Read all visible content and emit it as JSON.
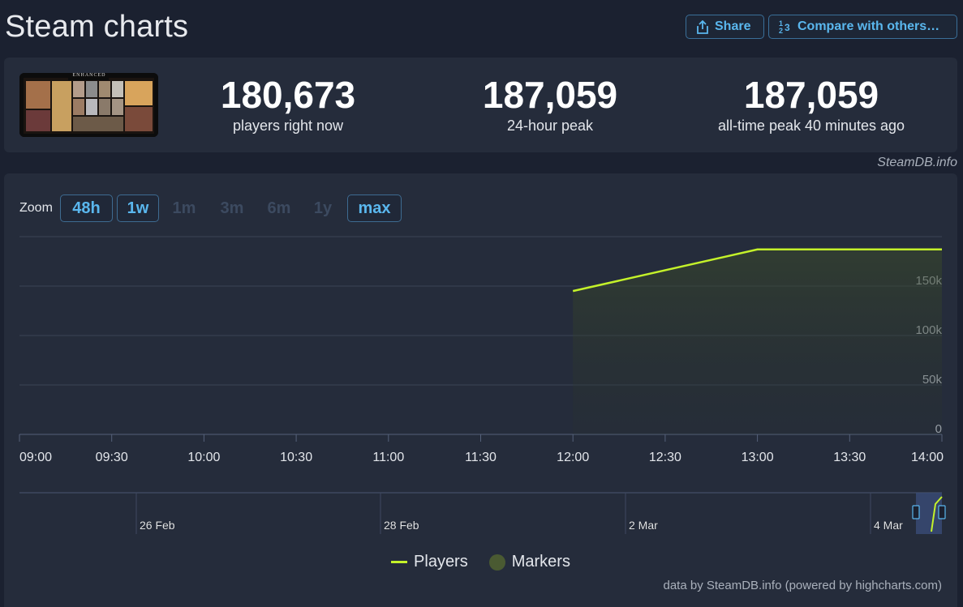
{
  "page": {
    "title": "Steam charts"
  },
  "header": {
    "share_label": "Share",
    "compare_label": "Compare with others…"
  },
  "stats": [
    {
      "value": "180,673",
      "label": "players right now"
    },
    {
      "value": "187,059",
      "label": "24-hour peak"
    },
    {
      "value": "187,059",
      "label": "all-time peak 40 minutes ago"
    }
  ],
  "game": {
    "banner_text": "ENHANCED"
  },
  "credit_top": "SteamDB.info",
  "zoom": {
    "label": "Zoom",
    "options": [
      {
        "label": "48h",
        "active": true
      },
      {
        "label": "1w",
        "active": true
      },
      {
        "label": "1m",
        "active": false
      },
      {
        "label": "3m",
        "active": false
      },
      {
        "label": "6m",
        "active": false
      },
      {
        "label": "1y",
        "active": false
      },
      {
        "label": "max",
        "active": true
      }
    ]
  },
  "colors": {
    "players_line": "#c4f22a",
    "markers": "#4a5a32",
    "accent": "#5ab7ee"
  },
  "chart_data": {
    "type": "line",
    "x_ticks": [
      "09:00",
      "09:30",
      "10:00",
      "10:30",
      "11:00",
      "11:30",
      "12:00",
      "12:30",
      "13:00",
      "13:30",
      "14:00"
    ],
    "y_ticks": [
      "0",
      "50k",
      "100k",
      "150k"
    ],
    "ylim": [
      0,
      200000
    ],
    "xlim": [
      "09:00",
      "14:00"
    ],
    "series": [
      {
        "name": "Players",
        "x": [
          "12:00",
          "13:00",
          "14:00"
        ],
        "y": [
          145000,
          187059,
          187059
        ]
      }
    ],
    "navigator": {
      "labels": [
        "26 Feb",
        "28 Feb",
        "2 Mar",
        "4 Mar"
      ]
    },
    "legend": [
      "Players",
      "Markers"
    ],
    "grid": true,
    "legend_position": "bottom"
  },
  "credit_bottom": "data by SteamDB.info (powered by highcharts.com)"
}
